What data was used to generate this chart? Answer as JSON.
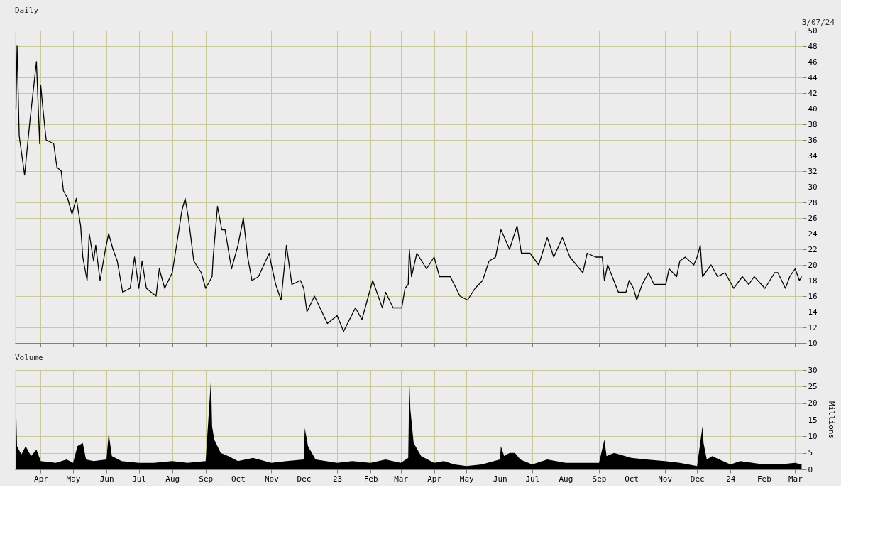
{
  "chart_data": [
    {
      "type": "line",
      "title": "Daily",
      "annotations": [
        "3/07/24"
      ],
      "grid": true,
      "tick_labels": "y",
      "xlim": [
        "2022-03-08",
        "2024-03-08"
      ],
      "xticks": [
        {
          "value": "2022-04-01",
          "label": null
        },
        {
          "value": "2022-05-01",
          "label": null
        },
        {
          "value": "2022-06-01",
          "label": null
        },
        {
          "value": "2022-07-01",
          "label": null
        },
        {
          "value": "2022-08-01",
          "label": null
        },
        {
          "value": "2022-09-01",
          "label": null
        },
        {
          "value": "2022-10-01",
          "label": null
        },
        {
          "value": "2022-11-01",
          "label": null
        },
        {
          "value": "2022-12-01",
          "label": null
        },
        {
          "value": "2023-01-01",
          "label": null
        },
        {
          "value": "2023-02-01",
          "label": null
        },
        {
          "value": "2023-03-01",
          "label": null
        },
        {
          "value": "2023-04-01",
          "label": null
        },
        {
          "value": "2023-05-01",
          "label": null
        },
        {
          "value": "2023-06-01",
          "label": null
        },
        {
          "value": "2023-07-01",
          "label": null
        },
        {
          "value": "2023-08-01",
          "label": null
        },
        {
          "value": "2023-09-01",
          "label": null
        },
        {
          "value": "2023-10-01",
          "label": null
        },
        {
          "value": "2023-11-01",
          "label": null
        },
        {
          "value": "2023-12-01",
          "label": null
        },
        {
          "value": "2024-01-01",
          "label": null
        },
        {
          "value": "2024-02-01",
          "label": null
        },
        {
          "value": "2024-03-01",
          "label": null
        }
      ],
      "ylim": [
        10,
        50
      ],
      "yticks": [
        10,
        12,
        14,
        16,
        18,
        20,
        22,
        24,
        26,
        28,
        30,
        32,
        34,
        36,
        38,
        40,
        42,
        44,
        46,
        48,
        50
      ],
      "series": [
        {
          "color": "#000000",
          "x": [
            "2022-03-09",
            "2022-03-10",
            "2022-03-12",
            "2022-03-17",
            "2022-03-22",
            "2022-03-26",
            "2022-03-28",
            "2022-03-31",
            "2022-04-01",
            "2022-04-03",
            "2022-04-06",
            "2022-04-13",
            "2022-04-16",
            "2022-04-20",
            "2022-04-22",
            "2022-04-26",
            "2022-04-30",
            "2022-05-04",
            "2022-05-08",
            "2022-05-10",
            "2022-05-14",
            "2022-05-16",
            "2022-05-20",
            "2022-05-22",
            "2022-05-26",
            "2022-05-31",
            "2022-06-03",
            "2022-06-07",
            "2022-06-11",
            "2022-06-16",
            "2022-06-23",
            "2022-06-27",
            "2022-07-01",
            "2022-07-04",
            "2022-07-08",
            "2022-07-17",
            "2022-07-20",
            "2022-07-25",
            "2022-08-01",
            "2022-08-05",
            "2022-08-10",
            "2022-08-13",
            "2022-08-16",
            "2022-08-21",
            "2022-08-28",
            "2022-09-01",
            "2022-09-07",
            "2022-09-08",
            "2022-09-12",
            "2022-09-16",
            "2022-09-19",
            "2022-09-25",
            "2022-10-01",
            "2022-10-06",
            "2022-10-10",
            "2022-10-14",
            "2022-10-20",
            "2022-10-30",
            "2022-11-01",
            "2022-11-05",
            "2022-11-10",
            "2022-11-15",
            "2022-11-20",
            "2022-11-28",
            "2022-12-01",
            "2022-12-04",
            "2022-12-11",
            "2022-12-23",
            "2023-01-01",
            "2023-01-07",
            "2023-01-18",
            "2023-01-24",
            "2023-02-03",
            "2023-02-12",
            "2023-02-15",
            "2023-02-22",
            "2023-03-02",
            "2023-03-05",
            "2023-03-08",
            "2023-03-09",
            "2023-03-11",
            "2023-03-16",
            "2023-03-25",
            "2023-04-01",
            "2023-04-06",
            "2023-04-16",
            "2023-04-25",
            "2023-05-02",
            "2023-05-09",
            "2023-05-16",
            "2023-05-22",
            "2023-05-28",
            "2023-06-02",
            "2023-06-10",
            "2023-06-17",
            "2023-06-21",
            "2023-06-29",
            "2023-07-07",
            "2023-07-15",
            "2023-07-21",
            "2023-07-29",
            "2023-08-05",
            "2023-08-17",
            "2023-08-21",
            "2023-08-29",
            "2023-09-04",
            "2023-09-06",
            "2023-09-09",
            "2023-09-19",
            "2023-09-26",
            "2023-09-29",
            "2023-10-03",
            "2023-10-06",
            "2023-10-11",
            "2023-10-17",
            "2023-10-22",
            "2023-11-02",
            "2023-11-05",
            "2023-11-12",
            "2023-11-15",
            "2023-11-20",
            "2023-11-28",
            "2023-12-01",
            "2023-12-04",
            "2023-12-06",
            "2023-12-14",
            "2023-12-20",
            "2023-12-27",
            "2024-01-04",
            "2024-01-12",
            "2024-01-18",
            "2024-01-23",
            "2024-02-02",
            "2024-02-11",
            "2024-02-14",
            "2024-02-21",
            "2024-02-25",
            "2024-03-01",
            "2024-03-05",
            "2024-03-07"
          ],
          "values": [
            40,
            48,
            36.5,
            31.5,
            38.5,
            43.5,
            46,
            35.5,
            43,
            40,
            36,
            35.5,
            32.5,
            32,
            29.5,
            28.5,
            26.5,
            28.5,
            25,
            21,
            18,
            24,
            20.5,
            22.5,
            18,
            22,
            24,
            22,
            20.5,
            16.5,
            17,
            21,
            17,
            20.5,
            17,
            16,
            19.5,
            17,
            19,
            22.5,
            27,
            28.5,
            26,
            20.5,
            19,
            17,
            18.5,
            21,
            27.5,
            24.5,
            24.5,
            19.5,
            22.5,
            26,
            21,
            18,
            18.5,
            21.5,
            20,
            17.5,
            15.5,
            22.5,
            17.5,
            18,
            17,
            14,
            16,
            12.5,
            13.5,
            11.5,
            14.5,
            13,
            18,
            14.5,
            16.5,
            14.5,
            14.5,
            17,
            17.5,
            22,
            18.5,
            21.5,
            19.5,
            21,
            18.5,
            18.5,
            16,
            15.5,
            17,
            18,
            20.5,
            21,
            24.5,
            22,
            25,
            21.5,
            21.5,
            20,
            23.5,
            21,
            23.5,
            21,
            19,
            21.5,
            21,
            21,
            18,
            20,
            16.5,
            16.5,
            18,
            17,
            15.5,
            17.5,
            19,
            17.5,
            17.5,
            19.5,
            18.5,
            20.5,
            21,
            20,
            21,
            22.5,
            18.5,
            20,
            18.5,
            19,
            17,
            18.5,
            17.5,
            18.5,
            17,
            19,
            19,
            17,
            18.5,
            19.5,
            18,
            18.5
          ]
        }
      ]
    },
    {
      "type": "area",
      "title": "Volume",
      "ylabel": "Millions",
      "grid": true,
      "xlim": [
        "2022-03-08",
        "2024-03-08"
      ],
      "xticks": [
        {
          "value": "2022-04-01",
          "label": "Apr"
        },
        {
          "value": "2022-05-01",
          "label": "May"
        },
        {
          "value": "2022-06-01",
          "label": "Jun"
        },
        {
          "value": "2022-07-01",
          "label": "Jul"
        },
        {
          "value": "2022-08-01",
          "label": "Aug"
        },
        {
          "value": "2022-09-01",
          "label": "Sep"
        },
        {
          "value": "2022-10-01",
          "label": "Oct"
        },
        {
          "value": "2022-11-01",
          "label": "Nov"
        },
        {
          "value": "2022-12-01",
          "label": "Dec"
        },
        {
          "value": "2023-01-01",
          "label": "23"
        },
        {
          "value": "2023-02-01",
          "label": "Feb"
        },
        {
          "value": "2023-03-01",
          "label": "Mar"
        },
        {
          "value": "2023-04-01",
          "label": "Apr"
        },
        {
          "value": "2023-05-01",
          "label": "May"
        },
        {
          "value": "2023-06-01",
          "label": "Jun"
        },
        {
          "value": "2023-07-01",
          "label": "Jul"
        },
        {
          "value": "2023-08-01",
          "label": "Aug"
        },
        {
          "value": "2023-09-01",
          "label": "Sep"
        },
        {
          "value": "2023-10-01",
          "label": "Oct"
        },
        {
          "value": "2023-11-01",
          "label": "Nov"
        },
        {
          "value": "2023-12-01",
          "label": "Dec"
        },
        {
          "value": "2024-01-01",
          "label": "24"
        },
        {
          "value": "2024-02-01",
          "label": "Feb"
        },
        {
          "value": "2024-03-01",
          "label": "Mar"
        }
      ],
      "ylim": [
        0,
        30
      ],
      "yticks": [
        0,
        5,
        10,
        15,
        20,
        25,
        30
      ],
      "series": [
        {
          "color": "#000000",
          "x": [
            "2022-03-09",
            "2022-03-10",
            "2022-03-14",
            "2022-03-18",
            "2022-03-23",
            "2022-03-28",
            "2022-04-01",
            "2022-04-15",
            "2022-04-25",
            "2022-05-01",
            "2022-05-05",
            "2022-05-10",
            "2022-05-13",
            "2022-05-20",
            "2022-06-01",
            "2022-06-03",
            "2022-06-06",
            "2022-06-15",
            "2022-07-01",
            "2022-07-15",
            "2022-08-01",
            "2022-08-15",
            "2022-09-01",
            "2022-09-06",
            "2022-09-07",
            "2022-09-09",
            "2022-09-15",
            "2022-09-22",
            "2022-10-01",
            "2022-10-15",
            "2022-11-01",
            "2022-11-15",
            "2022-12-01",
            "2022-12-02",
            "2022-12-05",
            "2022-12-12",
            "2023-01-01",
            "2023-01-15",
            "2023-02-01",
            "2023-02-15",
            "2023-03-01",
            "2023-03-08",
            "2023-03-09",
            "2023-03-10",
            "2023-03-13",
            "2023-03-20",
            "2023-04-01",
            "2023-04-10",
            "2023-04-20",
            "2023-05-01",
            "2023-05-15",
            "2023-06-01",
            "2023-06-02",
            "2023-06-05",
            "2023-06-10",
            "2023-06-15",
            "2023-06-20",
            "2023-07-01",
            "2023-07-15",
            "2023-08-01",
            "2023-08-15",
            "2023-09-01",
            "2023-09-06",
            "2023-09-08",
            "2023-09-15",
            "2023-10-01",
            "2023-10-15",
            "2023-11-01",
            "2023-11-15",
            "2023-12-01",
            "2023-12-06",
            "2023-12-07",
            "2023-12-10",
            "2023-12-15",
            "2024-01-01",
            "2024-01-10",
            "2024-02-01",
            "2024-02-15",
            "2024-03-01",
            "2024-03-07"
          ],
          "values": [
            19.5,
            7,
            4.5,
            7,
            4,
            6,
            2.5,
            2,
            3,
            2,
            7,
            8,
            3,
            2.5,
            3,
            11,
            4,
            2.5,
            2,
            2,
            2.5,
            2,
            2.5,
            27.5,
            13,
            9,
            5,
            4,
            2.5,
            3.5,
            2,
            2.5,
            3,
            12.5,
            7,
            3,
            2,
            2.5,
            2,
            3,
            2,
            3.5,
            27,
            18,
            8,
            4,
            2,
            2.5,
            1.5,
            1,
            1.5,
            3,
            7,
            4,
            5,
            5,
            3,
            1.5,
            3,
            2,
            2,
            2,
            9,
            4,
            5,
            3.5,
            3,
            2.5,
            2,
            1,
            13,
            8,
            3,
            4,
            1.5,
            2.5,
            1.5,
            1.5,
            2,
            1.5
          ]
        }
      ]
    }
  ]
}
